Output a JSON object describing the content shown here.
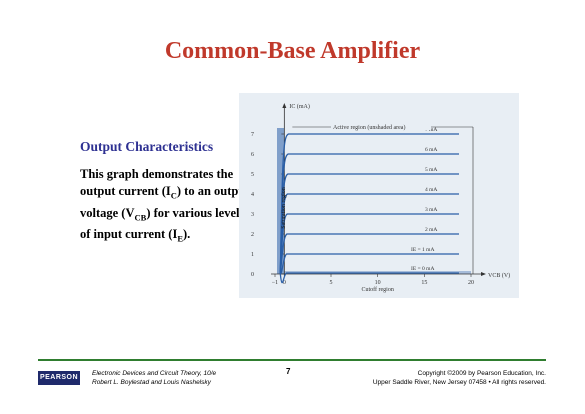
{
  "slide": {
    "title": "Common-Base Amplifier",
    "heading": "Output Characteristics",
    "description": [
      {
        "t": "This graph demonstrates the output current (I"
      },
      {
        "t": "C",
        "sub": true
      },
      {
        "t": ") to an output voltage (V"
      },
      {
        "t": "CB",
        "sub": true
      },
      {
        "t": ") for various levels of input current (I"
      },
      {
        "t": "E",
        "sub": true
      },
      {
        "t": ")."
      }
    ]
  },
  "chart_data": {
    "type": "line",
    "ylabel": "I_C (mA)",
    "xlabel": "V_CB (V)",
    "x_ticks": [
      "−1",
      "0",
      "5",
      "10",
      "15",
      "20"
    ],
    "y_ticks": [
      "0",
      "1",
      "2",
      "3",
      "4",
      "5",
      "6",
      "7"
    ],
    "xlim": [
      -1,
      20
    ],
    "ylim": [
      0,
      7.5
    ],
    "series": [
      {
        "name": "I_E = 0 mA",
        "level": 0.05
      },
      {
        "name": "I_E = 1 mA",
        "level": 1
      },
      {
        "name": "2 mA",
        "level": 2
      },
      {
        "name": "3 mA",
        "level": 3
      },
      {
        "name": "4 mA",
        "level": 4
      },
      {
        "name": "5 mA",
        "level": 5
      },
      {
        "name": "6 mA",
        "level": 6
      },
      {
        "name": "7 mA",
        "level": 7
      }
    ],
    "annotations": {
      "active": "Active region (unshaded area)",
      "saturation": "Saturation region",
      "cutoff": "Cutoff region"
    },
    "colors": {
      "curve": "#2a5fa8",
      "axis": "#333333",
      "background": "#e8eef4",
      "shaded": "#2a5fa8"
    }
  },
  "footer": {
    "logo": "PEARSON",
    "book_line1": "Electronic Devices and Circuit Theory, 10/e",
    "book_line2": "Robert L. Boylestad and Louis Nashelsky",
    "page": "7",
    "copyright_line1": "Copyright ©2009 by Pearson Education, Inc.",
    "copyright_line2": "Upper Saddle River, New Jersey 07458 • All rights reserved."
  }
}
